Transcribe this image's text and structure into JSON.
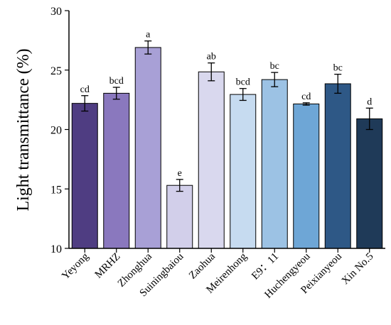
{
  "chart_data": {
    "type": "bar",
    "ylabel": "Light transmittance (%)",
    "xlabel": "",
    "ylim": [
      10,
      30
    ],
    "yticks": [
      10,
      15,
      20,
      25,
      30
    ],
    "categories": [
      "Yeyong",
      "MRHZ",
      "Zhonghua",
      "Suiningbaiou",
      "Zaohua",
      "Meirenhong",
      "E9：11",
      "Huchengyeou",
      "Peixianyeou",
      "Xin No.5"
    ],
    "values": [
      22.2,
      23.05,
      26.9,
      15.3,
      24.85,
      22.95,
      24.2,
      22.15,
      23.85,
      20.9
    ],
    "errors": [
      0.65,
      0.5,
      0.55,
      0.5,
      0.75,
      0.5,
      0.6,
      0.1,
      0.8,
      0.9
    ],
    "significance": [
      "cd",
      "bcd",
      "a",
      "e",
      "ab",
      "bcd",
      "bc",
      "cd",
      "bc",
      "d"
    ],
    "colors": [
      "#4f3d82",
      "#8a78be",
      "#a8a0d6",
      "#d2cfea",
      "#d9d8ee",
      "#c6dbf0",
      "#9cc2e4",
      "#6ea6d6",
      "#2e5886",
      "#1f3a58"
    ]
  }
}
